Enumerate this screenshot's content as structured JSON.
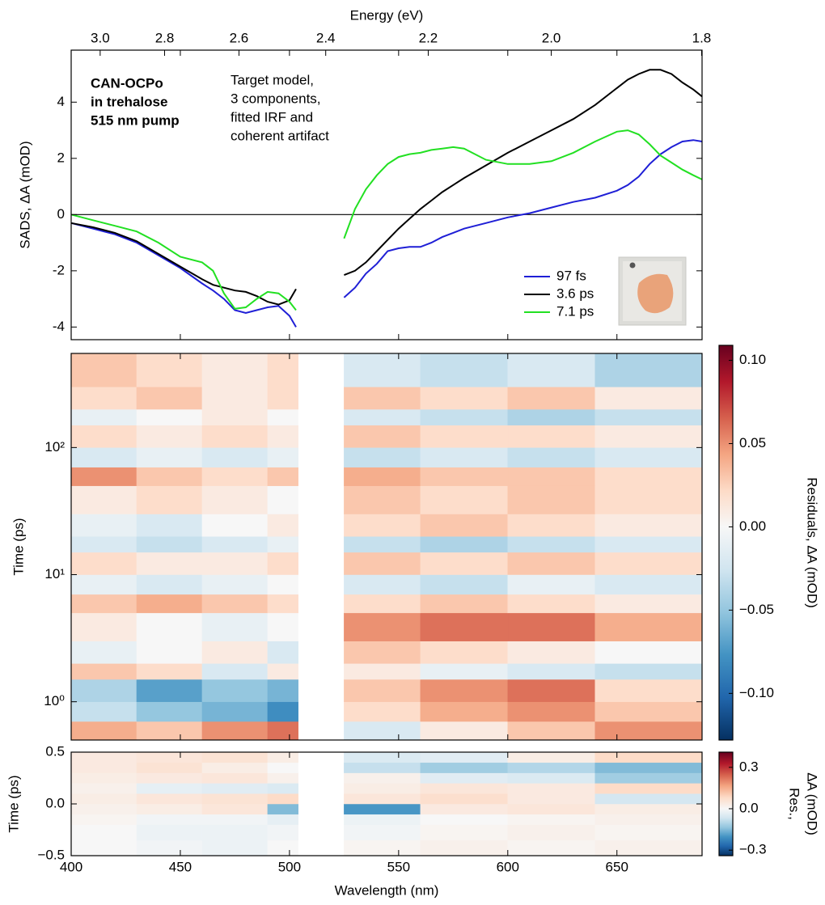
{
  "chart_data": [
    {
      "type": "line",
      "ylabel": "SADS, ΔA (mOD)",
      "x2label": "Energy (eV)",
      "x": [
        400,
        410,
        420,
        430,
        440,
        450,
        460,
        465,
        470,
        475,
        480,
        485,
        490,
        495,
        500,
        503,
        514,
        525,
        530,
        535,
        540,
        545,
        550,
        555,
        560,
        565,
        570,
        575,
        580,
        590,
        600,
        610,
        620,
        630,
        640,
        650,
        655,
        660,
        665,
        670,
        675,
        680,
        685,
        689
      ],
      "series": [
        {
          "name": "97 fs",
          "color": "#1f1fd6",
          "values": [
            -0.3,
            -0.5,
            -0.7,
            -1.0,
            -1.45,
            -1.9,
            -2.45,
            -2.7,
            -3.0,
            -3.4,
            -3.5,
            -3.4,
            -3.3,
            -3.25,
            -3.6,
            -4.0,
            null,
            -2.95,
            -2.6,
            -2.1,
            -1.75,
            -1.3,
            -1.2,
            -1.15,
            -1.15,
            -1.0,
            -0.8,
            -0.65,
            -0.5,
            -0.3,
            -0.1,
            0.05,
            0.25,
            0.45,
            0.6,
            0.85,
            1.05,
            1.35,
            1.8,
            2.15,
            2.4,
            2.6,
            2.65,
            2.6
          ]
        },
        {
          "name": "3.6 ps",
          "color": "#000000",
          "values": [
            -0.3,
            -0.45,
            -0.65,
            -0.95,
            -1.4,
            -1.85,
            -2.3,
            -2.5,
            -2.6,
            -2.7,
            -2.75,
            -2.9,
            -3.1,
            -3.2,
            -3.05,
            -2.65,
            null,
            -2.15,
            -2.0,
            -1.7,
            -1.3,
            -0.9,
            -0.5,
            -0.15,
            0.2,
            0.5,
            0.8,
            1.05,
            1.3,
            1.75,
            2.2,
            2.6,
            3.0,
            3.4,
            3.9,
            4.5,
            4.8,
            5.0,
            5.15,
            5.15,
            5.0,
            4.7,
            4.45,
            4.2
          ]
        },
        {
          "name": "7.1 ps",
          "color": "#22e022",
          "values": [
            0.0,
            -0.2,
            -0.4,
            -0.6,
            -1.0,
            -1.5,
            -1.7,
            -2.0,
            -2.8,
            -3.35,
            -3.3,
            -3.0,
            -2.75,
            -2.8,
            -3.1,
            -3.4,
            null,
            -0.85,
            0.2,
            0.9,
            1.4,
            1.8,
            2.05,
            2.15,
            2.2,
            2.3,
            2.35,
            2.4,
            2.35,
            1.95,
            1.8,
            1.8,
            1.9,
            2.2,
            2.6,
            2.95,
            3.0,
            2.85,
            2.5,
            2.1,
            1.85,
            1.6,
            1.4,
            1.25
          ]
        }
      ],
      "xlim": [
        400,
        689
      ],
      "ylim": [
        -4.45,
        5.85
      ],
      "xticks": [
        400,
        450,
        500,
        550,
        600,
        650
      ],
      "yticks": [
        -4,
        -2,
        0,
        2,
        4
      ],
      "x2ticks": [
        {
          "value": 3,
          "label": "3.0"
        },
        2.8,
        2.6,
        2.4,
        2.2,
        {
          "value": 2,
          "label": "2.0"
        },
        1.8
      ],
      "legend": "lower right",
      "zero_line": true,
      "annotations": [
        {
          "text": "CAN-OCPo",
          "color": "#22cc22",
          "bold": true
        },
        {
          "text": "in trehalose",
          "color": "#22cc22",
          "bold": true
        },
        {
          "text": "515 nm pump",
          "color": "#000000",
          "bold": true
        },
        {
          "text": "Target model,",
          "color": "#000000",
          "bold": false
        },
        {
          "text": "3 components,",
          "color": "#000000",
          "bold": false
        },
        {
          "text": "fitted IRF and",
          "color": "#000000",
          "bold": false
        },
        {
          "text": "coherent artifact",
          "color": "#000000",
          "bold": false
        }
      ]
    },
    {
      "type": "heatmap",
      "ylabel": "Time (ps)",
      "colorbar_label": [
        "Residuals, ΔA (mOD)"
      ],
      "colormap": "RdBu_r",
      "log_y": true,
      "x_bins": [
        400,
        430,
        460,
        490,
        504,
        525,
        560,
        600,
        640,
        689
      ],
      "y_bins": [
        0.5,
        0.7,
        1,
        1.5,
        2,
        3,
        5,
        7,
        10,
        15,
        20,
        30,
        50,
        70,
        100,
        150,
        200,
        300,
        550
      ],
      "z": [
        [
          0.04,
          0.03,
          0.05,
          0.06,
          null,
          -0.02,
          0.01,
          0.03,
          0.05
        ],
        [
          -0.03,
          -0.05,
          -0.06,
          -0.08,
          null,
          0.02,
          0.04,
          0.05,
          0.03
        ],
        [
          -0.04,
          -0.07,
          -0.05,
          -0.06,
          null,
          0.03,
          0.05,
          0.06,
          0.02
        ],
        [
          0.03,
          0.02,
          -0.02,
          0.01,
          null,
          0.01,
          -0.01,
          -0.02,
          -0.03
        ],
        [
          -0.01,
          0.0,
          0.01,
          -0.02,
          null,
          0.03,
          0.02,
          0.01,
          0.0
        ],
        [
          0.01,
          0.0,
          -0.01,
          0.0,
          null,
          0.05,
          0.06,
          0.06,
          0.04
        ],
        [
          0.03,
          0.04,
          0.03,
          0.02,
          null,
          0.02,
          0.03,
          0.02,
          0.01
        ],
        [
          -0.01,
          -0.02,
          -0.01,
          0.0,
          null,
          -0.02,
          -0.03,
          -0.01,
          -0.02
        ],
        [
          0.02,
          0.01,
          0.01,
          0.02,
          null,
          0.03,
          0.02,
          0.03,
          0.02
        ],
        [
          -0.02,
          -0.03,
          -0.02,
          -0.01,
          null,
          -0.03,
          -0.04,
          -0.03,
          -0.02
        ],
        [
          -0.01,
          -0.02,
          0.0,
          0.01,
          null,
          0.02,
          0.03,
          0.02,
          0.01
        ],
        [
          0.01,
          0.02,
          0.01,
          0.0,
          null,
          0.03,
          0.02,
          0.03,
          0.02
        ],
        [
          0.05,
          0.03,
          0.02,
          0.03,
          null,
          0.04,
          0.03,
          0.03,
          0.02
        ],
        [
          -0.02,
          -0.01,
          -0.02,
          -0.01,
          null,
          -0.03,
          -0.02,
          -0.03,
          -0.02
        ],
        [
          0.02,
          0.01,
          0.02,
          0.01,
          null,
          0.03,
          0.02,
          0.02,
          0.01
        ],
        [
          -0.01,
          0.0,
          0.01,
          0.0,
          null,
          -0.02,
          -0.03,
          -0.04,
          -0.03
        ],
        [
          0.02,
          0.03,
          0.01,
          0.02,
          null,
          0.03,
          0.02,
          0.03,
          0.01
        ],
        [
          0.03,
          0.02,
          0.01,
          0.02,
          null,
          -0.02,
          -0.03,
          -0.02,
          -0.04
        ]
      ],
      "xlim": [
        400,
        689
      ],
      "ylim": [
        0.5,
        550
      ],
      "xticks": [
        400,
        450,
        500,
        550,
        600,
        650
      ],
      "yticks": [
        {
          "value": 1,
          "label": "10⁰"
        },
        {
          "value": 10,
          "label": "10¹"
        },
        {
          "value": 100,
          "label": "10²"
        }
      ],
      "zlim": [
        -0.128,
        0.109
      ],
      "zticks": [
        {
          "value": 0.1,
          "label": "0.10"
        },
        {
          "value": 0.05,
          "label": "0.05"
        },
        {
          "value": 0,
          "label": "0.00"
        },
        {
          "value": -0.05,
          "label": "−0.05"
        },
        {
          "value": -0.1,
          "label": "−0.10"
        }
      ]
    },
    {
      "type": "heatmap",
      "xlabel": "Wavelength (nm)",
      "ylabel": "Time (ps)",
      "colorbar_label": [
        "Res.,",
        "ΔA (mOD)"
      ],
      "colormap": "RdBu_r",
      "log_y": false,
      "x_bins": [
        400,
        430,
        460,
        490,
        504,
        525,
        560,
        600,
        640,
        689
      ],
      "y_bins": [
        -0.5,
        -0.35,
        -0.2,
        -0.1,
        0,
        0.1,
        0.2,
        0.3,
        0.4,
        0.5
      ],
      "z": [
        [
          0.0,
          -0.01,
          -0.02,
          0.0,
          null,
          0.01,
          0.02,
          0.01,
          0.02
        ],
        [
          0.0,
          -0.02,
          -0.02,
          -0.01,
          null,
          -0.01,
          0.01,
          0.02,
          0.01
        ],
        [
          0.01,
          -0.01,
          -0.01,
          -0.03,
          null,
          -0.02,
          0.0,
          0.01,
          0.02
        ],
        [
          0.02,
          0.03,
          0.05,
          -0.15,
          null,
          -0.2,
          0.04,
          0.05,
          0.03
        ],
        [
          0.03,
          0.05,
          0.06,
          0.08,
          null,
          0.05,
          0.07,
          0.04,
          -0.06
        ],
        [
          0.02,
          -0.03,
          -0.04,
          -0.05,
          null,
          0.03,
          0.05,
          0.04,
          0.08
        ],
        [
          0.03,
          0.04,
          0.05,
          0.02,
          null,
          0.02,
          -0.04,
          -0.05,
          -0.12
        ],
        [
          0.04,
          0.06,
          0.03,
          0.0,
          null,
          -0.08,
          -0.12,
          -0.1,
          -0.15
        ],
        [
          0.04,
          0.05,
          0.06,
          0.03,
          null,
          -0.05,
          -0.04,
          0.03,
          0.08
        ]
      ],
      "xlim": [
        400,
        689
      ],
      "ylim": [
        -0.5,
        0.5
      ],
      "xticks": [
        400,
        450,
        500,
        550,
        600,
        650
      ],
      "yticks": [
        {
          "value": 0.5,
          "label": "0.5"
        },
        {
          "value": 0,
          "label": "0.0"
        },
        {
          "value": -0.5,
          "label": "−0.5"
        }
      ],
      "zlim": [
        -0.34,
        0.41
      ],
      "zticks": [
        {
          "value": 0.3,
          "label": "0.3"
        },
        {
          "value": 0,
          "label": "0.0"
        },
        {
          "value": -0.3,
          "label": "−0.3"
        }
      ]
    }
  ]
}
